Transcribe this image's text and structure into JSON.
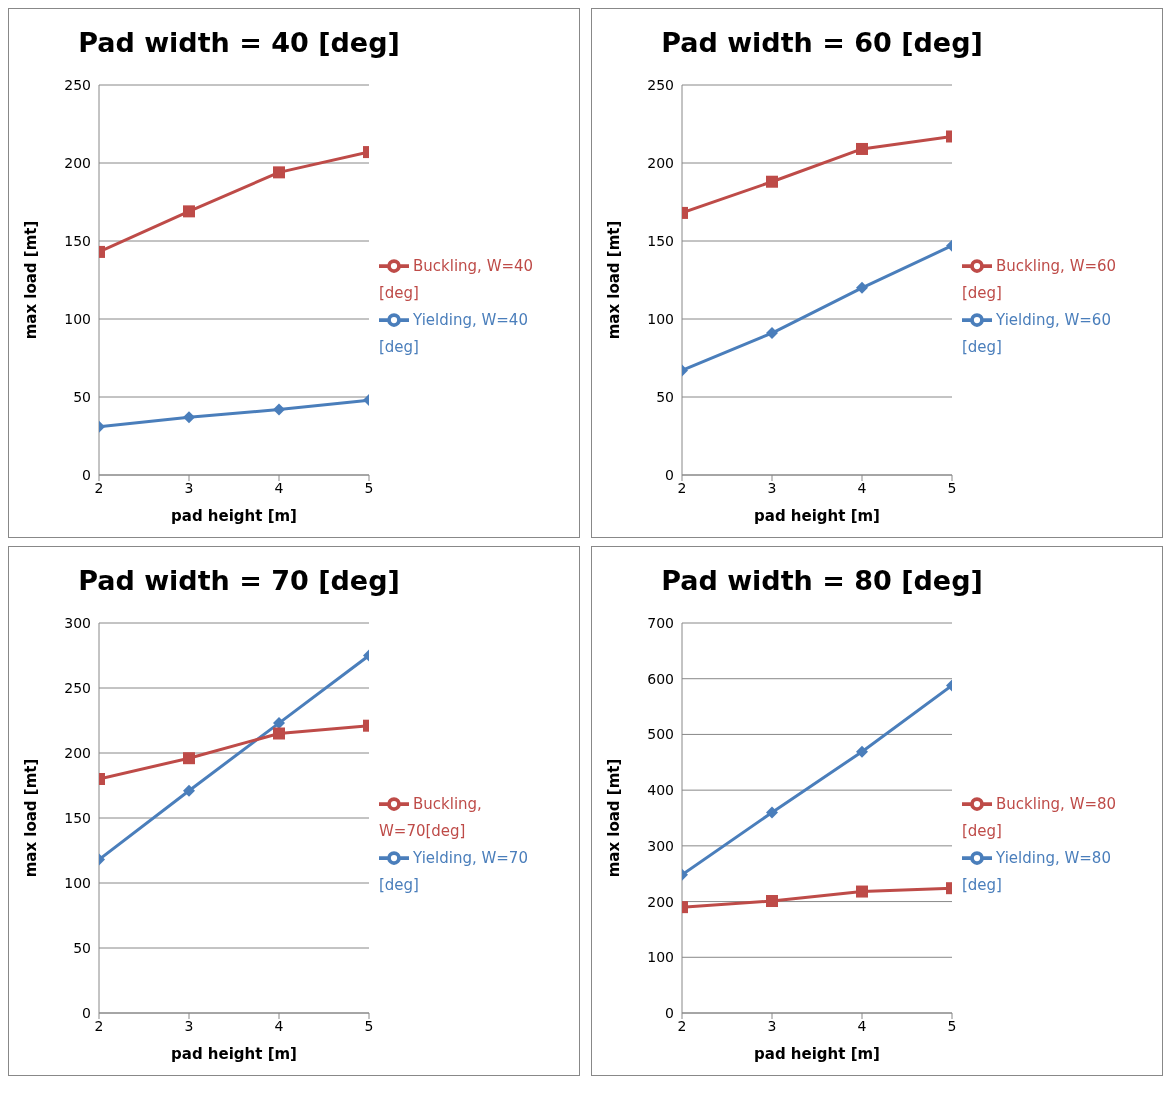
{
  "chart_data": [
    {
      "type": "line",
      "title": "Pad width = 40 [deg]",
      "xlabel": "pad height [m]",
      "ylabel": "max load [mt]",
      "categories": [
        "2",
        "3",
        "4",
        "5"
      ],
      "ylim": [
        0,
        250
      ],
      "yticks": [
        0,
        50,
        100,
        150,
        200,
        250
      ],
      "grid": "y",
      "legend": "right",
      "series": [
        {
          "name": "Yielding, W=40 [deg]",
          "color": "#4a7ebb",
          "marker": "diamond",
          "values": [
            31,
            37,
            42,
            48
          ]
        },
        {
          "name": "Buckling, W=40 [deg]",
          "color": "#be4b48",
          "marker": "square",
          "values": [
            143,
            169,
            194,
            207
          ]
        }
      ]
    },
    {
      "type": "line",
      "title": "Pad width = 60 [deg]",
      "xlabel": "pad height [m]",
      "ylabel": "max load [mt]",
      "categories": [
        "2",
        "3",
        "4",
        "5"
      ],
      "ylim": [
        0,
        250
      ],
      "yticks": [
        0,
        50,
        100,
        150,
        200,
        250
      ],
      "grid": "y",
      "legend": "right",
      "series": [
        {
          "name": "Yielding, W=60 [deg]",
          "color": "#4a7ebb",
          "marker": "diamond",
          "values": [
            67,
            91,
            120,
            147
          ]
        },
        {
          "name": "Buckling, W=60 [deg]",
          "color": "#be4b48",
          "marker": "square",
          "values": [
            168,
            188,
            209,
            217
          ]
        }
      ]
    },
    {
      "type": "line",
      "title": "Pad width = 70 [deg]",
      "xlabel": "pad height [m]",
      "ylabel": "max load [mt]",
      "categories": [
        "2",
        "3",
        "4",
        "5"
      ],
      "ylim": [
        0,
        300
      ],
      "yticks": [
        0,
        50,
        100,
        150,
        200,
        250,
        300
      ],
      "grid": "y",
      "legend": "right",
      "series": [
        {
          "name": "Yielding, W=70 [deg]",
          "color": "#4a7ebb",
          "marker": "diamond",
          "values": [
            118,
            171,
            223,
            275
          ]
        },
        {
          "name": "Buckling, W=70[deg]",
          "color": "#be4b48",
          "marker": "square",
          "values": [
            180,
            196,
            215,
            221
          ]
        }
      ]
    },
    {
      "type": "line",
      "title": "Pad width = 80 [deg]",
      "xlabel": "pad height [m]",
      "ylabel": "max load [mt]",
      "categories": [
        "2",
        "3",
        "4",
        "5"
      ],
      "ylim": [
        0,
        700
      ],
      "yticks": [
        0,
        100,
        200,
        300,
        400,
        500,
        600,
        700
      ],
      "grid": "y",
      "legend": "right",
      "series": [
        {
          "name": "Yielding, W=80 [deg]",
          "color": "#4a7ebb",
          "marker": "diamond",
          "values": [
            248,
            360,
            469,
            588
          ]
        },
        {
          "name": "Buckling, W=80 [deg]",
          "color": "#be4b48",
          "marker": "square",
          "values": [
            190,
            201,
            218,
            224
          ]
        }
      ]
    }
  ]
}
